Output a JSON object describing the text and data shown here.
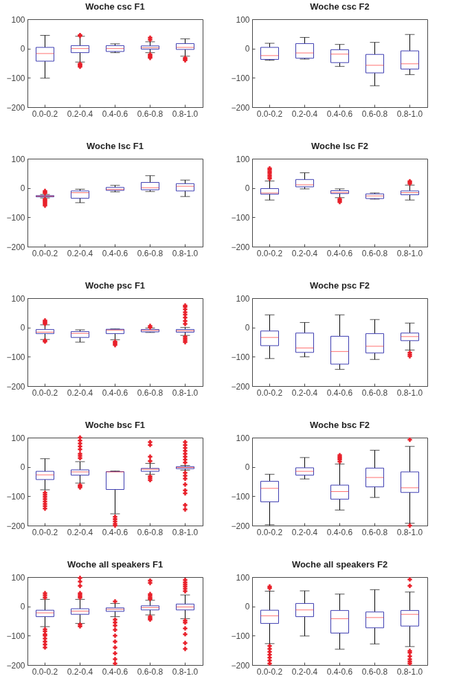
{
  "chart_data": [
    {
      "type": "box",
      "title": "Woche csc F1",
      "categories": [
        "0.0-0.2",
        "0.2-0.4",
        "0.4-0.6",
        "0.6-0.8",
        "0.8-1.0"
      ],
      "ylim": [
        -200,
        100
      ],
      "yticks": [
        -200,
        -100,
        0,
        100
      ],
      "boxes": [
        {
          "low": -101,
          "q1": -43,
          "median": -17,
          "q3": 4,
          "high": 45
        },
        {
          "low": -46,
          "q1": -14,
          "median": 0,
          "q3": 10,
          "high": 42,
          "outliers": [
            46,
            43,
            -52,
            -55,
            -58,
            -62
          ]
        },
        {
          "low": -14,
          "q1": -10,
          "median": 0,
          "q3": 10,
          "high": 16
        },
        {
          "low": -14,
          "q1": -2,
          "median": 3,
          "q3": 9,
          "high": 23,
          "outliers": [
            37,
            30,
            -20,
            -24,
            -28,
            -32
          ]
        },
        {
          "low": -26,
          "q1": -3,
          "median": 4,
          "q3": 17,
          "high": 33,
          "outliers": [
            -32,
            -36,
            -40
          ]
        }
      ]
    },
    {
      "type": "box",
      "title": "Woche csc F2",
      "categories": [
        "0.0-0.2",
        "0.2-0.4",
        "0.4-0.6",
        "0.6-0.8",
        "0.8-1.0"
      ],
      "ylim": [
        -200,
        100
      ],
      "yticks": [
        -200,
        -100,
        0,
        100
      ],
      "boxes": [
        {
          "low": -40,
          "q1": -37,
          "median": -24,
          "q3": 4,
          "high": 18
        },
        {
          "low": -36,
          "q1": -33,
          "median": -15,
          "q3": 17,
          "high": 38
        },
        {
          "low": -61,
          "q1": -48,
          "median": -19,
          "q3": -4,
          "high": 14
        },
        {
          "low": -127,
          "q1": -83,
          "median": -57,
          "q3": -20,
          "high": 21
        },
        {
          "low": -89,
          "q1": -70,
          "median": -52,
          "q3": -8,
          "high": 48
        }
      ]
    },
    {
      "type": "box",
      "title": "Woche lsc F1",
      "categories": [
        "0.0-0.2",
        "0.2-0.4",
        "0.4-0.6",
        "0.6-0.8",
        "0.8-1.0"
      ],
      "ylim": [
        -200,
        100
      ],
      "yticks": [
        -200,
        -100,
        0,
        100
      ],
      "boxes": [
        {
          "low": -34,
          "q1": -30,
          "median": -28,
          "q3": -26,
          "high": -22,
          "outliers": [
            -10,
            -14,
            -18,
            -38,
            -42,
            -46,
            -50,
            -55,
            -60
          ]
        },
        {
          "low": -50,
          "q1": -35,
          "median": -16,
          "q3": -10,
          "high": -4
        },
        {
          "low": -13,
          "q1": -8,
          "median": -5,
          "q3": 2,
          "high": 9
        },
        {
          "low": -12,
          "q1": -6,
          "median": 1,
          "q3": 19,
          "high": 42
        },
        {
          "low": -29,
          "q1": -10,
          "median": 6,
          "q3": 15,
          "high": 27
        }
      ]
    },
    {
      "type": "box",
      "title": "Woche lsc F2",
      "categories": [
        "0.0-0.2",
        "0.2-0.4",
        "0.4-0.6",
        "0.6-0.8",
        "0.8-1.0"
      ],
      "ylim": [
        -200,
        100
      ],
      "yticks": [
        -200,
        -100,
        0,
        100
      ],
      "boxes": [
        {
          "low": -41,
          "q1": -21,
          "median": -17,
          "q3": -2,
          "high": 24,
          "outliers": [
            32,
            38,
            44,
            50,
            56,
            62,
            67
          ]
        },
        {
          "low": -3,
          "q1": 4,
          "median": 11,
          "q3": 29,
          "high": 52
        },
        {
          "low": -33,
          "q1": -19,
          "median": -15,
          "q3": -9,
          "high": -3,
          "outliers": [
            -38,
            -43,
            -48
          ]
        },
        {
          "low": -38,
          "q1": -36,
          "median": -27,
          "q3": -20,
          "high": -17
        },
        {
          "low": -41,
          "q1": -23,
          "median": -16,
          "q3": -10,
          "high": 10,
          "outliers": [
            15,
            19,
            23
          ]
        }
      ]
    },
    {
      "type": "box",
      "title": "Woche psc F1",
      "categories": [
        "0.0-0.2",
        "0.2-0.4",
        "0.4-0.6",
        "0.6-0.8",
        "0.8-1.0"
      ],
      "ylim": [
        -200,
        100
      ],
      "yticks": [
        -200,
        -100,
        0,
        100
      ],
      "boxes": [
        {
          "low": -41,
          "q1": -21,
          "median": -16,
          "q3": -7,
          "high": 9,
          "outliers": [
            12,
            16,
            20,
            24,
            -44,
            -48
          ]
        },
        {
          "low": -50,
          "q1": -34,
          "median": -20,
          "q3": -14,
          "high": -8
        },
        {
          "low": -42,
          "q1": -21,
          "median": -9,
          "q3": -6,
          "high": -5,
          "outliers": [
            -48,
            -52,
            -56,
            -60
          ]
        },
        {
          "low": -17,
          "q1": -15,
          "median": -10,
          "q3": -7,
          "high": -2,
          "outliers": [
            0,
            5
          ]
        },
        {
          "low": -27,
          "q1": -16,
          "median": -11,
          "q3": -7,
          "high": 0,
          "outliers": [
            75,
            70,
            62,
            52,
            44,
            34,
            22,
            12,
            -32,
            -38,
            -44,
            -50
          ]
        }
      ]
    },
    {
      "type": "box",
      "title": "Woche psc F2",
      "categories": [
        "0.0-0.2",
        "0.2-0.4",
        "0.4-0.6",
        "0.6-0.8",
        "0.8-1.0"
      ],
      "ylim": [
        -200,
        100
      ],
      "yticks": [
        -200,
        -100,
        0,
        100
      ],
      "boxes": [
        {
          "low": -106,
          "q1": -62,
          "median": -34,
          "q3": -12,
          "high": 43
        },
        {
          "low": -100,
          "q1": -85,
          "median": -70,
          "q3": -19,
          "high": 17
        },
        {
          "low": -143,
          "q1": -125,
          "median": -82,
          "q3": -30,
          "high": 43
        },
        {
          "low": -109,
          "q1": -87,
          "median": -64,
          "q3": -21,
          "high": 27
        },
        {
          "low": -77,
          "q1": -45,
          "median": -31,
          "q3": -19,
          "high": 15,
          "outliers": [
            -86,
            -92,
            -98
          ]
        }
      ]
    },
    {
      "type": "box",
      "title": "Woche bsc F1",
      "categories": [
        "0.0-0.2",
        "0.2-0.4",
        "0.4-0.6",
        "0.6-0.8",
        "0.8-1.0"
      ],
      "ylim": [
        -200,
        100
      ],
      "yticks": [
        -200,
        -100,
        0,
        100
      ],
      "boxes": [
        {
          "low": -78,
          "q1": -43,
          "median": -27,
          "q3": -15,
          "high": 28,
          "outliers": [
            -88,
            -95,
            -102,
            -110,
            -118,
            -126,
            -134,
            -142
          ]
        },
        {
          "low": -55,
          "q1": -28,
          "median": -17,
          "q3": -10,
          "high": 18,
          "outliers": [
            100,
            90,
            80,
            70,
            60,
            45,
            38,
            30,
            -62,
            -66,
            -70
          ]
        },
        {
          "low": -160,
          "q1": -77,
          "median": -17,
          "q3": -16,
          "high": -14,
          "outliers": [
            -170,
            -178,
            -186,
            -194,
            -200
          ]
        },
        {
          "low": -25,
          "q1": -15,
          "median": -8,
          "q3": -5,
          "high": 12,
          "outliers": [
            85,
            75,
            35,
            20,
            -32,
            -38,
            -45
          ]
        },
        {
          "low": -11,
          "q1": -6,
          "median": -2,
          "q3": 1,
          "high": 5,
          "outliers": [
            85,
            75,
            65,
            55,
            45,
            35,
            25,
            15,
            -20,
            -30,
            -40,
            -60,
            -80,
            -90,
            -130,
            -145
          ]
        }
      ]
    },
    {
      "type": "box",
      "title": "Woche bsc F2",
      "categories": [
        "0.0-0.2",
        "0.2-0.4",
        "0.4-0.6",
        "0.6-0.8",
        "0.8-1.0"
      ],
      "ylim": [
        -200,
        100
      ],
      "yticks": [
        -200,
        -100,
        0,
        100
      ],
      "boxes": [
        {
          "low": -197,
          "q1": -119,
          "median": -73,
          "q3": -49,
          "high": -25
        },
        {
          "low": -41,
          "q1": -28,
          "median": -15,
          "q3": -3,
          "high": 32
        },
        {
          "low": -147,
          "q1": -110,
          "median": -84,
          "q3": -62,
          "high": 10,
          "outliers": [
            40,
            35,
            30,
            25,
            18
          ]
        },
        {
          "low": -104,
          "q1": -68,
          "median": -36,
          "q3": -4,
          "high": 57
        },
        {
          "low": -192,
          "q1": -87,
          "median": -71,
          "q3": -17,
          "high": 70,
          "outliers": [
            93,
            -200
          ]
        }
      ]
    },
    {
      "type": "box",
      "title": "Woche all speakers F1",
      "categories": [
        "0.0-0.2",
        "0.2-0.4",
        "0.4-0.6",
        "0.6-0.8",
        "0.8-1.0"
      ],
      "ylim": [
        -200,
        100
      ],
      "yticks": [
        -200,
        -100,
        0,
        100
      ],
      "boxes": [
        {
          "low": -69,
          "q1": -35,
          "median": -22,
          "q3": -13,
          "high": 24,
          "outliers": [
            45,
            38,
            30,
            -78,
            -85,
            -95,
            -100,
            -110,
            -120,
            -130,
            -140
          ]
        },
        {
          "low": -58,
          "q1": -27,
          "median": -16,
          "q3": -8,
          "high": 24,
          "outliers": [
            97,
            85,
            70,
            45,
            40,
            35,
            30,
            -62,
            -68
          ]
        },
        {
          "low": -35,
          "q1": -17,
          "median": -10,
          "q3": -5,
          "high": 10,
          "outliers": [
            17,
            -45,
            -55,
            -65,
            -80,
            -100,
            -120,
            -140,
            -160,
            -180,
            -195
          ]
        },
        {
          "low": -29,
          "q1": -12,
          "median": -4,
          "q3": 2,
          "high": 21,
          "outliers": [
            88,
            80,
            42,
            36,
            30,
            25,
            -35,
            -40,
            -45
          ]
        },
        {
          "low": -42,
          "q1": -12,
          "median": -2,
          "q3": 8,
          "high": 39,
          "outliers": [
            90,
            82,
            75,
            68,
            60,
            52,
            -48,
            -55,
            -75,
            -95,
            -125,
            -145
          ]
        }
      ]
    },
    {
      "type": "box",
      "title": "Woche all speakers F2",
      "categories": [
        "0.0-0.2",
        "0.2-0.4",
        "0.4-0.6",
        "0.6-0.8",
        "0.8-1.0"
      ],
      "ylim": [
        -200,
        100
      ],
      "yticks": [
        -200,
        -100,
        0,
        100
      ],
      "boxes": [
        {
          "low": -127,
          "q1": -58,
          "median": -32,
          "q3": -13,
          "high": 52,
          "outliers": [
            68,
            62,
            -135,
            -145,
            -155,
            -165,
            -175,
            -185,
            -195
          ]
        },
        {
          "low": -101,
          "q1": -35,
          "median": -12,
          "q3": 10,
          "high": 53
        },
        {
          "low": -146,
          "q1": -91,
          "median": -42,
          "q3": -14,
          "high": 42
        },
        {
          "low": -128,
          "q1": -73,
          "median": -38,
          "q3": -19,
          "high": 57
        },
        {
          "low": -137,
          "q1": -67,
          "median": -27,
          "q3": -14,
          "high": 49,
          "outliers": [
            92,
            70,
            -152,
            -158,
            -170,
            -180,
            -188,
            -195
          ]
        }
      ]
    }
  ]
}
